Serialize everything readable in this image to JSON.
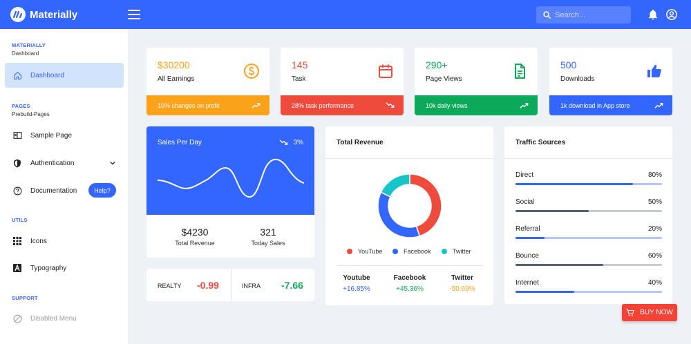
{
  "header": {
    "app_name": "Materially",
    "search_placeholder": "Search...",
    "icons": [
      "menu-icon",
      "search-icon",
      "bell-icon",
      "account-icon"
    ]
  },
  "sidebar": {
    "sections": [
      {
        "title": "MATERIALLY",
        "subtitle": "Dashboard"
      },
      {
        "title": "PAGES",
        "subtitle": "Prebuild-Pages"
      },
      {
        "title": "UTILS"
      },
      {
        "title": "SUPPORT"
      }
    ],
    "items": [
      {
        "label": "Dashboard",
        "icon": "home-icon"
      },
      {
        "label": "Sample Page",
        "icon": "page-icon"
      },
      {
        "label": "Authentication",
        "icon": "shield-icon"
      },
      {
        "label": "Documentation",
        "icon": "help-icon"
      },
      {
        "label": "Icons",
        "icon": "grid-icon"
      },
      {
        "label": "Typography",
        "icon": "typography-icon"
      },
      {
        "label": "Disabled Menu",
        "icon": "disabled-icon"
      }
    ],
    "help_label": "Help?"
  },
  "stats": [
    {
      "value": "$30200",
      "label": "All Earnings",
      "footer": "10% changes on profit",
      "color": "#f9a21a",
      "bar": "#f9a21a",
      "icon": "dollar-icon",
      "trend": "up"
    },
    {
      "value": "145",
      "label": "Task",
      "footer": "28% task performance",
      "color": "#ef4b3d",
      "bar": "#ef4b3d",
      "icon": "calendar-icon",
      "trend": "down"
    },
    {
      "value": "290+",
      "label": "Page Views",
      "footer": "10k daily views",
      "color": "#0ca95a",
      "bar": "#0ca95a",
      "icon": "document-icon",
      "trend": "up"
    },
    {
      "value": "500",
      "label": "Downloads",
      "footer": "1k download in App store",
      "color": "#3366ff",
      "bar": "#3366ff",
      "icon": "thumb-up-icon",
      "trend": "up"
    }
  ],
  "sales": {
    "title": "Sales Per Day",
    "change": "3%",
    "total_revenue_value": "$4230",
    "total_revenue_label": "Total Revenue",
    "today_sales_value": "321",
    "today_sales_label": "Today Sales"
  },
  "tickers": [
    {
      "label": "REALTY",
      "value": "-0.99",
      "color": "#ef4b3d"
    },
    {
      "label": "INFRA",
      "value": "-7.66",
      "color": "#0ca95a"
    }
  ],
  "revenue": {
    "title": "Total Revenue",
    "legend": [
      {
        "name": "YouTube",
        "color": "#ef4b3d"
      },
      {
        "name": "Facebook",
        "color": "#3366ff"
      },
      {
        "name": "Twitter",
        "color": "#16c4c9"
      }
    ],
    "columns": [
      {
        "name": "Youtube",
        "value": "+16.85%",
        "color": "#3366ff"
      },
      {
        "name": "Facebook",
        "value": "+45.36%",
        "color": "#0ca95a"
      },
      {
        "name": "Twitter",
        "value": "-50.69%",
        "color": "#f9a21a"
      }
    ]
  },
  "chart_data": {
    "type": "pie",
    "categories": [
      "YouTube",
      "Facebook",
      "Twitter"
    ],
    "values": [
      45,
      37,
      18
    ],
    "colors": [
      "#ef4b3d",
      "#3366ff",
      "#16c4c9"
    ],
    "donut": true
  },
  "traffic": {
    "title": "Traffic Sources",
    "rows": [
      {
        "name": "Direct",
        "pct": "80%",
        "value": 0.8,
        "fill": "#3366ff",
        "track": "#b3c6ff"
      },
      {
        "name": "Social",
        "pct": "50%",
        "value": 0.5,
        "fill": "#546170",
        "track": "#c7cbd1"
      },
      {
        "name": "Referral",
        "pct": "20%",
        "value": 0.2,
        "fill": "#3366ff",
        "track": "#b3c6ff"
      },
      {
        "name": "Bounce",
        "pct": "60%",
        "value": 0.6,
        "fill": "#546170",
        "track": "#c7cbd1"
      },
      {
        "name": "Internet",
        "pct": "40%",
        "value": 0.4,
        "fill": "#3366ff",
        "track": "#b3c6ff"
      }
    ]
  },
  "buy_now_label": "BUY NOW"
}
